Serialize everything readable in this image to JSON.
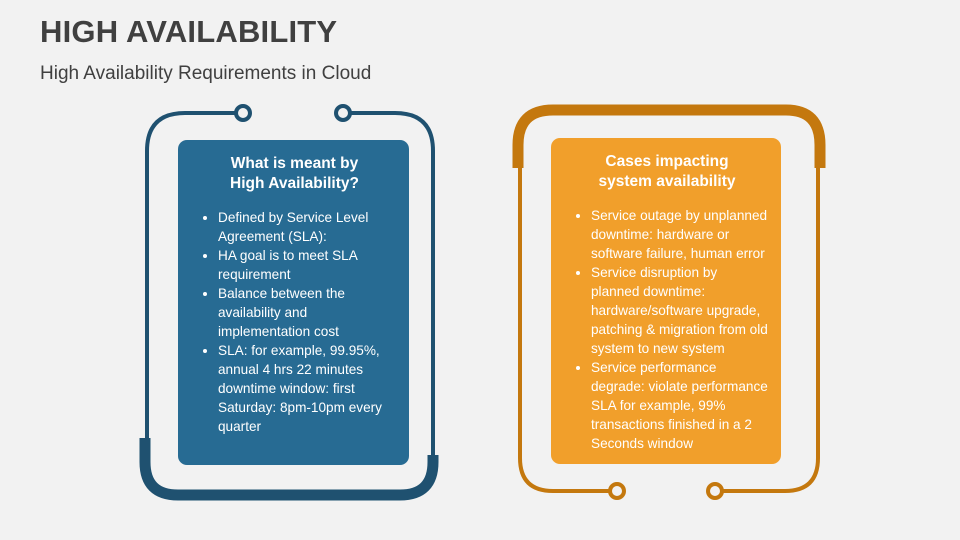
{
  "header": {
    "title": "HIGH AVAILABILITY",
    "subtitle": "High Availability Requirements in Cloud"
  },
  "colors": {
    "background": "#f2f2f2",
    "blue_frame": "#1f5170",
    "blue_card": "#276b93",
    "orange_frame": "#c4780e",
    "orange_card": "#f19f2b"
  },
  "cards": [
    {
      "heading_line1": "What is meant by",
      "heading_line2": "High Availability?",
      "bullets": [
        "Defined by Service Level Agreement (SLA):",
        "HA goal is to meet SLA requirement",
        "Balance between the availability and implementation cost",
        "SLA: for example, 99.95%, annual 4 hrs 22 minutes downtime window: first Saturday: 8pm-10pm every quarter"
      ]
    },
    {
      "heading_line1": "Cases impacting",
      "heading_line2": "system availability",
      "bullets": [
        "Service outage by unplanned downtime: hardware or software failure, human error",
        "Service disruption by planned downtime: hardware/software upgrade, patching & migration from old system to new system",
        "Service performance degrade: violate performance SLA for example, 99% transactions finished in a 2 Seconds window"
      ]
    }
  ]
}
